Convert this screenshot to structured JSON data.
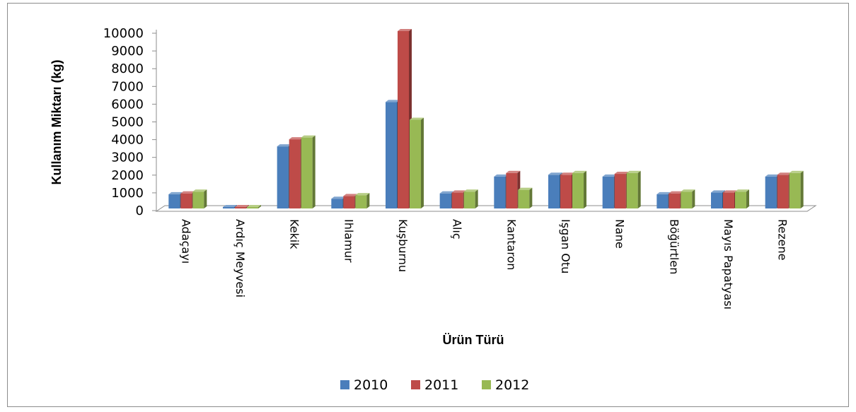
{
  "chart_data": {
    "type": "bar",
    "title": "",
    "xlabel": "Ürün Türü",
    "ylabel": "Kullanım Miktarı (kg)",
    "ylim": [
      0,
      10000
    ],
    "yticks": [
      "0",
      "1000",
      "2000",
      "3000",
      "4000",
      "5000",
      "6000",
      "7000",
      "8000",
      "9000",
      "10000"
    ],
    "categories": [
      "Adaçayı",
      "Ardıç Meyvesi",
      "Kekik",
      "Ihlamur",
      "Kuşburnu",
      "Alıç",
      "Kantaron",
      "Işgan Otu",
      "Nane",
      "Böğürtlen",
      "Mayıs Papatyası",
      "Rezene"
    ],
    "series": [
      {
        "name": "2010",
        "color": "#4a7ebb",
        "values": [
          800,
          0,
          3500,
          550,
          6000,
          850,
          1800,
          1900,
          1800,
          800,
          900,
          1800
        ]
      },
      {
        "name": "2011",
        "color": "#be4b48",
        "values": [
          850,
          0,
          3900,
          700,
          10000,
          900,
          2000,
          1900,
          1950,
          850,
          900,
          1900
        ]
      },
      {
        "name": "2012",
        "color": "#98b954",
        "values": [
          950,
          0,
          4000,
          750,
          5000,
          950,
          1050,
          2000,
          2000,
          950,
          950,
          2000
        ]
      }
    ],
    "grid": false,
    "legend": "bottom",
    "style": "3d-column"
  }
}
